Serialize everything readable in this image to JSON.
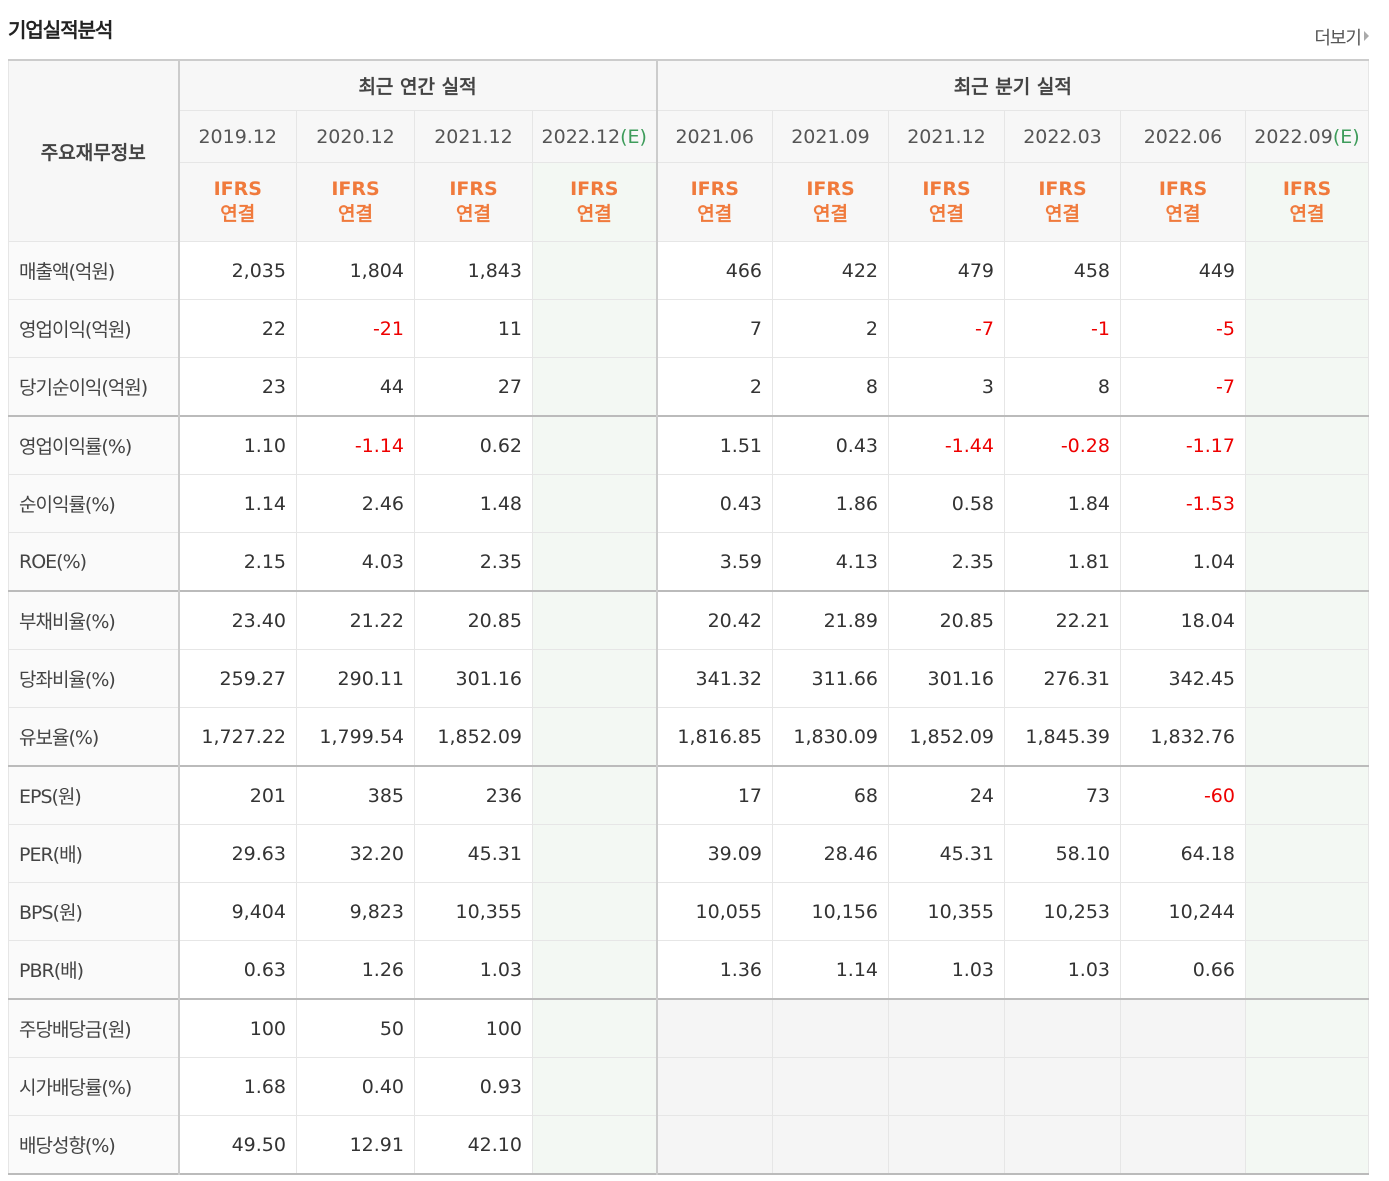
{
  "header": {
    "title": "기업실적분석",
    "more": "더보기"
  },
  "table": {
    "corner": "주요재무정보",
    "groups": [
      {
        "title": "최근 연간 실적",
        "columns": [
          {
            "date": "2019.12",
            "basis": [
              "IFRS",
              "연결"
            ]
          },
          {
            "date": "2020.12",
            "basis": [
              "IFRS",
              "연결"
            ]
          },
          {
            "date": "2021.12",
            "basis": [
              "IFRS",
              "연결"
            ]
          },
          {
            "date": "2022.12",
            "estimate": "(E)",
            "basis": [
              "IFRS",
              "연결"
            ]
          }
        ]
      },
      {
        "title": "최근 분기 실적",
        "columns": [
          {
            "date": "2021.06",
            "basis": [
              "IFRS",
              "연결"
            ]
          },
          {
            "date": "2021.09",
            "basis": [
              "IFRS",
              "연결"
            ]
          },
          {
            "date": "2021.12",
            "basis": [
              "IFRS",
              "연결"
            ]
          },
          {
            "date": "2022.03",
            "basis": [
              "IFRS",
              "연결"
            ]
          },
          {
            "date": "2022.06",
            "basis": [
              "IFRS",
              "연결"
            ]
          },
          {
            "date": "2022.09",
            "estimate": "(E)",
            "basis": [
              "IFRS",
              "연결"
            ]
          }
        ]
      }
    ],
    "sections": [
      {
        "rows": [
          {
            "label": "매출액(억원)",
            "values": [
              "2,035",
              "1,804",
              "1,843",
              null,
              "466",
              "422",
              "479",
              "458",
              "449",
              null
            ]
          },
          {
            "label": "영업이익(억원)",
            "values": [
              "22",
              "-21",
              "11",
              null,
              "7",
              "2",
              "-7",
              "-1",
              "-5",
              null
            ]
          },
          {
            "label": "당기순이익(억원)",
            "values": [
              "23",
              "44",
              "27",
              null,
              "2",
              "8",
              "3",
              "8",
              "-7",
              null
            ]
          }
        ]
      },
      {
        "rows": [
          {
            "label": "영업이익률(%)",
            "values": [
              "1.10",
              "-1.14",
              "0.62",
              null,
              "1.51",
              "0.43",
              "-1.44",
              "-0.28",
              "-1.17",
              null
            ]
          },
          {
            "label": "순이익률(%)",
            "values": [
              "1.14",
              "2.46",
              "1.48",
              null,
              "0.43",
              "1.86",
              "0.58",
              "1.84",
              "-1.53",
              null
            ]
          },
          {
            "label": "ROE(%)",
            "values": [
              "2.15",
              "4.03",
              "2.35",
              null,
              "3.59",
              "4.13",
              "2.35",
              "1.81",
              "1.04",
              null
            ]
          }
        ]
      },
      {
        "rows": [
          {
            "label": "부채비율(%)",
            "values": [
              "23.40",
              "21.22",
              "20.85",
              null,
              "20.42",
              "21.89",
              "20.85",
              "22.21",
              "18.04",
              null
            ]
          },
          {
            "label": "당좌비율(%)",
            "values": [
              "259.27",
              "290.11",
              "301.16",
              null,
              "341.32",
              "311.66",
              "301.16",
              "276.31",
              "342.45",
              null
            ]
          },
          {
            "label": "유보율(%)",
            "values": [
              "1,727.22",
              "1,799.54",
              "1,852.09",
              null,
              "1,816.85",
              "1,830.09",
              "1,852.09",
              "1,845.39",
              "1,832.76",
              null
            ]
          }
        ]
      },
      {
        "rows": [
          {
            "label": "EPS(원)",
            "values": [
              "201",
              "385",
              "236",
              null,
              "17",
              "68",
              "24",
              "73",
              "-60",
              null
            ]
          },
          {
            "label": "PER(배)",
            "values": [
              "29.63",
              "32.20",
              "45.31",
              null,
              "39.09",
              "28.46",
              "45.31",
              "58.10",
              "64.18",
              null
            ]
          },
          {
            "label": "BPS(원)",
            "values": [
              "9,404",
              "9,823",
              "10,355",
              null,
              "10,055",
              "10,156",
              "10,355",
              "10,253",
              "10,244",
              null
            ]
          },
          {
            "label": "PBR(배)",
            "values": [
              "0.63",
              "1.26",
              "1.03",
              null,
              "1.36",
              "1.14",
              "1.03",
              "1.03",
              "0.66",
              null
            ]
          }
        ]
      },
      {
        "rows": [
          {
            "label": "주당배당금(원)",
            "values": [
              "100",
              "50",
              "100",
              null,
              null,
              null,
              null,
              null,
              null,
              null
            ]
          },
          {
            "label": "시가배당률(%)",
            "values": [
              "1.68",
              "0.40",
              "0.93",
              null,
              null,
              null,
              null,
              null,
              null,
              null
            ]
          },
          {
            "label": "배당성향(%)",
            "values": [
              "49.50",
              "12.91",
              "42.10",
              null,
              null,
              null,
              null,
              null,
              null,
              null
            ]
          }
        ]
      }
    ]
  }
}
